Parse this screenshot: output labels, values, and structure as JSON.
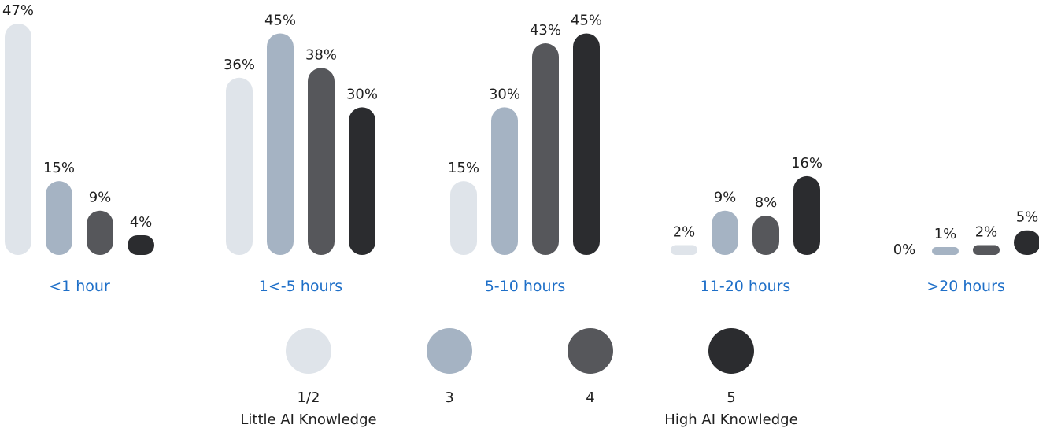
{
  "chart_data": {
    "type": "bar",
    "categories": [
      "<1 hour",
      "1<-5 hours",
      "5-10 hours",
      "11-20 hours",
      ">20 hours"
    ],
    "series": [
      {
        "name": "1/2",
        "color": "#dfe4ea",
        "values": [
          47,
          36,
          15,
          2,
          0
        ]
      },
      {
        "name": "3",
        "color": "#a5b3c3",
        "values": [
          15,
          45,
          30,
          9,
          1
        ]
      },
      {
        "name": "4",
        "color": "#56575b",
        "values": [
          9,
          38,
          43,
          8,
          2
        ]
      },
      {
        "name": "5",
        "color": "#2b2c2f",
        "values": [
          4,
          30,
          45,
          16,
          5
        ]
      }
    ],
    "value_suffix": "%",
    "ylim": [
      0,
      47
    ],
    "grid": false,
    "legend": {
      "position": "bottom",
      "items": [
        {
          "label": "1/2",
          "sublabel": "Little AI Knowledge"
        },
        {
          "label": "3",
          "sublabel": ""
        },
        {
          "label": "4",
          "sublabel": ""
        },
        {
          "label": "5",
          "sublabel": "High AI Knowledge"
        }
      ]
    }
  }
}
